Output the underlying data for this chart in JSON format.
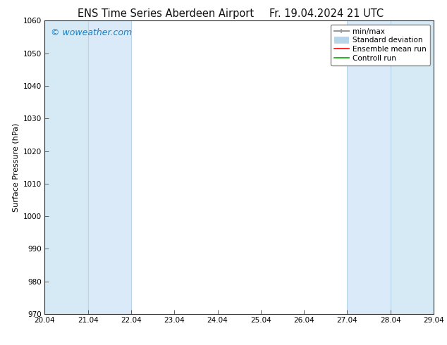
{
  "title_left": "ENS Time Series Aberdeen Airport",
  "title_right": "Fr. 19.04.2024 21 UTC",
  "ylabel": "Surface Pressure (hPa)",
  "ylim": [
    970,
    1060
  ],
  "yticks": [
    970,
    980,
    990,
    1000,
    1010,
    1020,
    1030,
    1040,
    1050,
    1060
  ],
  "xlim_start": 0,
  "xlim_end": 9,
  "xtick_labels": [
    "20.04",
    "21.04",
    "22.04",
    "23.04",
    "24.04",
    "25.04",
    "26.04",
    "27.04",
    "28.04",
    "29.04"
  ],
  "watermark": "© woweather.com",
  "watermark_color": "#1a7fc4",
  "bg_color": "#ffffff",
  "shaded_bands": [
    {
      "x_start": 0.0,
      "x_end": 1.0,
      "color": "#d6eaf5"
    },
    {
      "x_start": 1.0,
      "x_end": 2.0,
      "color": "#daeaf8"
    },
    {
      "x_start": 7.0,
      "x_end": 8.0,
      "color": "#daeaf8"
    },
    {
      "x_start": 8.0,
      "x_end": 9.0,
      "color": "#d6eaf5"
    }
  ],
  "band_lines_x": [
    0.0,
    1.0,
    2.0,
    7.0,
    8.0,
    9.0
  ],
  "band_line_color": "#b8d4e8",
  "legend_entries": [
    {
      "label": "min/max",
      "color": "#999999",
      "lw": 1.5
    },
    {
      "label": "Standard deviation",
      "color": "#b8d4e8",
      "lw": 7
    },
    {
      "label": "Ensemble mean run",
      "color": "#ff0000",
      "lw": 1.2
    },
    {
      "label": "Controll run",
      "color": "#00aa00",
      "lw": 1.2
    }
  ],
  "font_family": "DejaVu Sans",
  "title_fontsize": 10.5,
  "axis_label_fontsize": 8,
  "tick_fontsize": 7.5,
  "legend_fontsize": 7.5,
  "watermark_fontsize": 9
}
